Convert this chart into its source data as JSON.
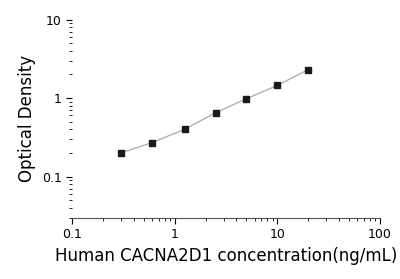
{
  "x": [
    0.3,
    0.6,
    1.25,
    2.5,
    5,
    10,
    20
  ],
  "y": [
    0.2,
    0.27,
    0.4,
    0.65,
    0.98,
    1.45,
    2.3
  ],
  "xlabel": "Human CACNA2D1 concentration(ng/mL)",
  "ylabel": "Optical Density",
  "xlim": [
    0.1,
    100
  ],
  "ylim": [
    0.03,
    10
  ],
  "line_color": "#b0b0b0",
  "marker_color": "#1a1a1a",
  "marker": "s",
  "marker_size": 5,
  "line_width": 1.0,
  "background_color": "#ffffff",
  "xlabel_fontsize": 12,
  "ylabel_fontsize": 12,
  "tick_fontsize": 9,
  "xticks": [
    0.1,
    1,
    10,
    100
  ],
  "xtick_labels": [
    "0.1",
    "1",
    "10",
    "100"
  ],
  "yticks": [
    0.1,
    1,
    10
  ],
  "ytick_labels": [
    "0.1",
    "1",
    "10"
  ]
}
